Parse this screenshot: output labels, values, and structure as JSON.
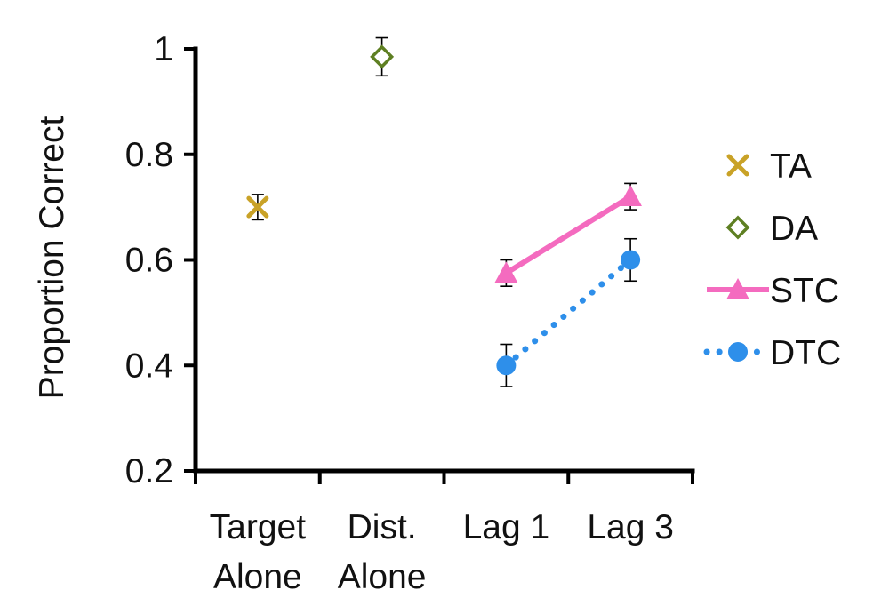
{
  "chart_data": {
    "type": "line",
    "title": "",
    "xlabel": "",
    "ylabel": "Proportion Correct",
    "ylim": [
      0.2,
      1.0
    ],
    "yticks": [
      "0.2",
      "0.4",
      "0.6",
      "0.8",
      "1"
    ],
    "ytick_values": [
      0.2,
      0.4,
      0.6,
      0.8,
      1.0
    ],
    "categories": [
      {
        "line1": "Target",
        "line2": "Alone"
      },
      {
        "line1": "Dist.",
        "line2": "Alone"
      },
      {
        "line1": "Lag 1",
        "line2": ""
      },
      {
        "line1": "Lag 3",
        "line2": ""
      }
    ],
    "series": [
      {
        "name": "TA",
        "marker": "x",
        "line": "none",
        "color": "#C9A227",
        "points": [
          {
            "category": 0,
            "y": 0.7,
            "err": 0.024
          }
        ]
      },
      {
        "name": "DA",
        "marker": "diamond-open",
        "line": "none",
        "color": "#5E7F22",
        "points": [
          {
            "category": 1,
            "y": 0.985,
            "err": 0.036
          }
        ]
      },
      {
        "name": "STC",
        "marker": "triangle",
        "line": "solid",
        "color": "#F46BBF",
        "points": [
          {
            "category": 2,
            "y": 0.575,
            "err": 0.025
          },
          {
            "category": 3,
            "y": 0.72,
            "err": 0.025
          }
        ]
      },
      {
        "name": "DTC",
        "marker": "circle",
        "line": "dotted",
        "color": "#2E8FEA",
        "points": [
          {
            "category": 2,
            "y": 0.4,
            "err": 0.04
          },
          {
            "category": 3,
            "y": 0.6,
            "err": 0.04
          }
        ]
      }
    ],
    "legend": {
      "position": "right",
      "entries": [
        "TA",
        "DA",
        "STC",
        "DTC"
      ]
    },
    "grid": false
  }
}
